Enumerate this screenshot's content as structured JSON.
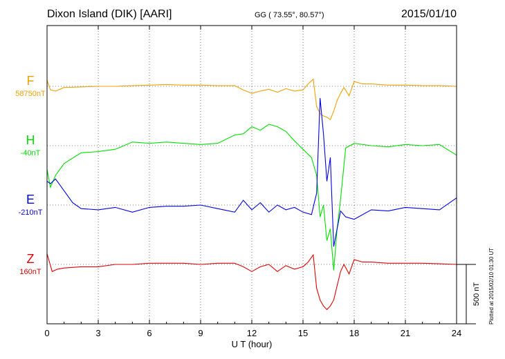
{
  "header": {
    "station": "Dixon Island (DIK)  [AARI]",
    "coords": "GG ( 73.55°,  80.57°)",
    "date": "2015/01/10"
  },
  "side_note": "Plotted at 2015/02/10 01:30 UT",
  "scale_label": "500 nT",
  "chart_data": {
    "type": "line",
    "title": "Dixon Island (DIK)  [AARI]",
    "xlabel": "U T (hour)",
    "ylabel": "",
    "xlim": [
      0,
      24
    ],
    "x_ticks": [
      "0",
      "3",
      "6",
      "9",
      "12",
      "15",
      "18",
      "21",
      "24"
    ],
    "grid": true,
    "scale_bar_nT": 500,
    "series": [
      {
        "name": "F",
        "baseline_label": "58750nT",
        "color": "#f0a000",
        "x": [
          0,
          0.2,
          0.5,
          1,
          2,
          3,
          4,
          5,
          6,
          7,
          8,
          9,
          10,
          11,
          11.5,
          12,
          12.5,
          13,
          13.5,
          14,
          14.5,
          15,
          15.3,
          15.6,
          15.8,
          16.0,
          16.2,
          16.4,
          16.6,
          16.8,
          17.0,
          17.2,
          17.4,
          17.7,
          18.0,
          18.5,
          19,
          20,
          21,
          22,
          23,
          24
        ],
        "y": [
          50,
          -30,
          -40,
          -10,
          -5,
          0,
          0,
          5,
          10,
          15,
          10,
          10,
          5,
          5,
          -30,
          -60,
          -40,
          -25,
          -50,
          -20,
          -40,
          -30,
          20,
          60,
          -170,
          -230,
          -250,
          -260,
          -280,
          -210,
          -120,
          -60,
          -10,
          -80,
          40,
          20,
          20,
          10,
          10,
          5,
          5,
          0
        ]
      },
      {
        "name": "H",
        "baseline_label": "-40nT",
        "color": "#00e000",
        "x": [
          0,
          0.2,
          0.5,
          1,
          2,
          3,
          4,
          5,
          6,
          7,
          8,
          9,
          10,
          11,
          11.5,
          12,
          12.5,
          13,
          13.5,
          14,
          14.5,
          15,
          15.5,
          15.8,
          16.0,
          16.2,
          16.4,
          16.6,
          16.8,
          17.0,
          17.2,
          17.5,
          18.0,
          19,
          20,
          21,
          22,
          23,
          24
        ],
        "y": [
          -200,
          -350,
          -250,
          -150,
          -60,
          -50,
          -30,
          30,
          20,
          30,
          20,
          10,
          20,
          90,
          100,
          160,
          130,
          180,
          160,
          120,
          40,
          -30,
          -100,
          -250,
          -600,
          -500,
          -800,
          -700,
          -1050,
          -700,
          -450,
          -20,
          20,
          0,
          -10,
          10,
          0,
          10,
          -80
        ]
      },
      {
        "name": "E",
        "baseline_label": "-210nT",
        "color": "#0000e0",
        "x": [
          0,
          0.2,
          0.5,
          1,
          1.5,
          2,
          3,
          4,
          5,
          6,
          7,
          8,
          9,
          10,
          11,
          11.5,
          12,
          12.5,
          13,
          13.5,
          14,
          14.5,
          15,
          15.5,
          15.8,
          16.0,
          16.2,
          16.4,
          16.6,
          16.8,
          17.0,
          17.2,
          17.5,
          18.0,
          19,
          20,
          21,
          22,
          23,
          24
        ],
        "y": [
          200,
          180,
          220,
          120,
          20,
          -30,
          -40,
          -20,
          -60,
          -20,
          -10,
          -10,
          0,
          -30,
          -60,
          40,
          -40,
          20,
          -60,
          0,
          -40,
          -20,
          -60,
          -80,
          100,
          900,
          600,
          200,
          400,
          -350,
          -200,
          -50,
          -100,
          -120,
          -40,
          -50,
          -20,
          -30,
          -40,
          60
        ]
      },
      {
        "name": "Z",
        "baseline_label": "160nT",
        "color": "#e00000",
        "x": [
          0,
          0.3,
          0.6,
          1,
          2,
          3,
          4,
          5,
          6,
          7,
          8,
          9,
          10,
          11,
          11.5,
          12,
          12.5,
          13,
          13.5,
          14,
          14.5,
          15,
          15.3,
          15.6,
          15.8,
          16.0,
          16.2,
          16.4,
          16.6,
          16.8,
          17.0,
          17.2,
          17.4,
          17.7,
          18.0,
          18.5,
          19,
          20,
          21,
          22,
          23,
          24
        ],
        "y": [
          90,
          -60,
          -40,
          -30,
          -20,
          -20,
          0,
          0,
          10,
          10,
          10,
          0,
          10,
          10,
          -20,
          -60,
          -20,
          0,
          -60,
          -10,
          -40,
          -20,
          20,
          80,
          -200,
          -300,
          -350,
          -380,
          -350,
          -300,
          -180,
          -60,
          0,
          -80,
          40,
          20,
          20,
          10,
          10,
          10,
          5,
          0
        ]
      }
    ]
  }
}
